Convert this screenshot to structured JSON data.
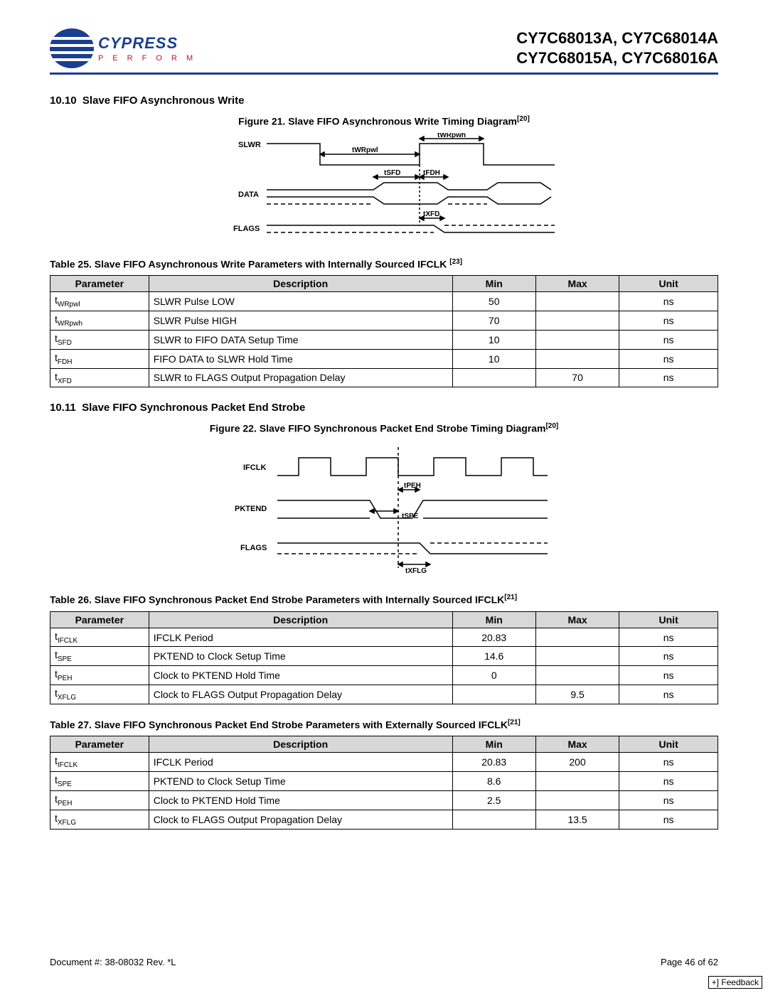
{
  "header": {
    "brand": "CYPRESS",
    "tagline": "P E R F O R M",
    "part1": "CY7C68013A, CY7C68014A",
    "part2": "CY7C68015A, CY7C68016A"
  },
  "section1": {
    "num": "10.10",
    "title": "Slave FIFO Asynchronous Write",
    "figcap": "Figure 21.  Slave FIFO Asynchronous Write Timing Diagram",
    "figref": "[20]"
  },
  "diagram1": {
    "signals": {
      "slwr": "SLWR",
      "data": "DATA",
      "flags": "FLAGS"
    },
    "labels": {
      "twrpwh": "tWRpwh",
      "twrpwl": "tWRpwl",
      "tsfd": "tSFD",
      "tfdh": "tFDH",
      "txfd": "tXFD"
    },
    "colors": {
      "stroke": "#000000",
      "text": "#000000"
    }
  },
  "table25": {
    "caption": "Table 25.  Slave FIFO Asynchronous Write Parameters with Internally Sourced IFCLK ",
    "capref": "[23]",
    "headers": {
      "p": "Parameter",
      "d": "Description",
      "min": "Min",
      "max": "Max",
      "u": "Unit"
    },
    "rows": [
      {
        "p": "t",
        "psub": "WRpwl",
        "d": "SLWR Pulse LOW",
        "min": "50",
        "max": "",
        "u": "ns"
      },
      {
        "p": "t",
        "psub": "WRpwh",
        "d": "SLWR Pulse HIGH",
        "min": "70",
        "max": "",
        "u": "ns"
      },
      {
        "p": "t",
        "psub": "SFD",
        "d": "SLWR to FIFO DATA Setup Time",
        "min": "10",
        "max": "",
        "u": "ns"
      },
      {
        "p": "t",
        "psub": "FDH",
        "d": "FIFO DATA to SLWR Hold Time",
        "min": "10",
        "max": "",
        "u": "ns"
      },
      {
        "p": "t",
        "psub": "XFD",
        "d": "SLWR to FLAGS Output Propagation Delay",
        "min": "",
        "max": "70",
        "u": "ns"
      }
    ]
  },
  "section2": {
    "num": "10.11",
    "title": "Slave FIFO Synchronous Packet End Strobe",
    "figcap": "Figure 22.  Slave FIFO Synchronous Packet End Strobe Timing Diagram",
    "figref": "[20]"
  },
  "diagram2": {
    "signals": {
      "ifclk": "IFCLK",
      "pktend": "PKTEND",
      "flags": "FLAGS"
    },
    "labels": {
      "tpeh": "tPEH",
      "tspe": "tSPE",
      "txflg": "tXFLG"
    },
    "colors": {
      "stroke": "#000000",
      "text": "#000000"
    }
  },
  "table26": {
    "caption": "Table 26.  Slave FIFO Synchronous Packet End Strobe Parameters with Internally Sourced IFCLK",
    "capref": "[21]",
    "headers": {
      "p": "Parameter",
      "d": "Description",
      "min": "Min",
      "max": "Max",
      "u": "Unit"
    },
    "rows": [
      {
        "p": "t",
        "psub": "IFCLK",
        "d": "IFCLK Period",
        "min": "20.83",
        "max": "",
        "u": "ns"
      },
      {
        "p": "t",
        "psub": "SPE",
        "d": "PKTEND to Clock Setup Time",
        "min": "14.6",
        "max": "",
        "u": "ns"
      },
      {
        "p": "t",
        "psub": "PEH",
        "d": "Clock to PKTEND Hold Time",
        "min": "0",
        "max": "",
        "u": "ns"
      },
      {
        "p": "t",
        "psub": "XFLG",
        "d": "Clock to FLAGS Output Propagation Delay",
        "min": "",
        "max": "9.5",
        "u": "ns"
      }
    ]
  },
  "table27": {
    "caption": "Table 27.  Slave FIFO Synchronous Packet End Strobe Parameters with Externally Sourced IFCLK",
    "capref": "[21]",
    "headers": {
      "p": "Parameter",
      "d": "Description",
      "min": "Min",
      "max": "Max",
      "u": "Unit"
    },
    "rows": [
      {
        "p": "t",
        "psub": "IFCLK",
        "d": "IFCLK Period",
        "min": "20.83",
        "max": "200",
        "u": "ns"
      },
      {
        "p": "t",
        "psub": "SPE",
        "d": "PKTEND to Clock Setup Time",
        "min": "8.6",
        "max": "",
        "u": "ns"
      },
      {
        "p": "t",
        "psub": "PEH",
        "d": "Clock to PKTEND Hold Time",
        "min": "2.5",
        "max": "",
        "u": "ns"
      },
      {
        "p": "t",
        "psub": "XFLG",
        "d": "Clock to FLAGS Output Propagation Delay",
        "min": "",
        "max": "13.5",
        "u": "ns"
      }
    ]
  },
  "footer": {
    "doc": "Document #: 38-08032 Rev. *L",
    "page": "Page 46 of 62",
    "feedback": "Feedback"
  }
}
